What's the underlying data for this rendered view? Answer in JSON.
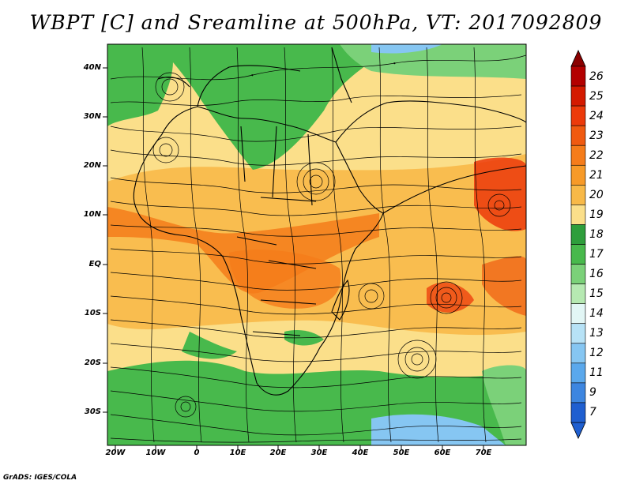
{
  "title": "WBPT [C] and Sreamline at 500hPa, VT: 2017092809",
  "credit": "GrADS: IGES/COLA",
  "lat_labels": [
    "40N",
    "30N",
    "20N",
    "10N",
    "EQ",
    "10S",
    "20S",
    "30S"
  ],
  "lon_labels": [
    "20W",
    "10W",
    "0",
    "10E",
    "20E",
    "30E",
    "40E",
    "50E",
    "60E",
    "70E"
  ],
  "colorbar": {
    "labels": [
      "26",
      "25",
      "24",
      "23",
      "22",
      "21",
      "20",
      "19",
      "18",
      "17",
      "16",
      "15",
      "14",
      "13",
      "12",
      "11",
      "9",
      "7"
    ],
    "colors": [
      "#b30000",
      "#d41a00",
      "#ec3a0a",
      "#f05a10",
      "#f57c1a",
      "#f79a28",
      "#f8b948",
      "#fbdf8a",
      "#2e9e3c",
      "#48b94c",
      "#7bd179",
      "#b6e9b2",
      "#e2f6f5",
      "#b7e2f6",
      "#86c6f2",
      "#5aa8ec",
      "#3d86e0",
      "#1f5fd0"
    ]
  },
  "map": {
    "field_colors": {
      "cool_green": "#48b94c",
      "pale_green": "#7bd179",
      "warm_tan": "#fbdf8a",
      "orange": "#f8b948",
      "deep_orange": "#f57c1a",
      "red_orange": "#ec3a0a",
      "light_blue": "#86c6f2"
    }
  }
}
